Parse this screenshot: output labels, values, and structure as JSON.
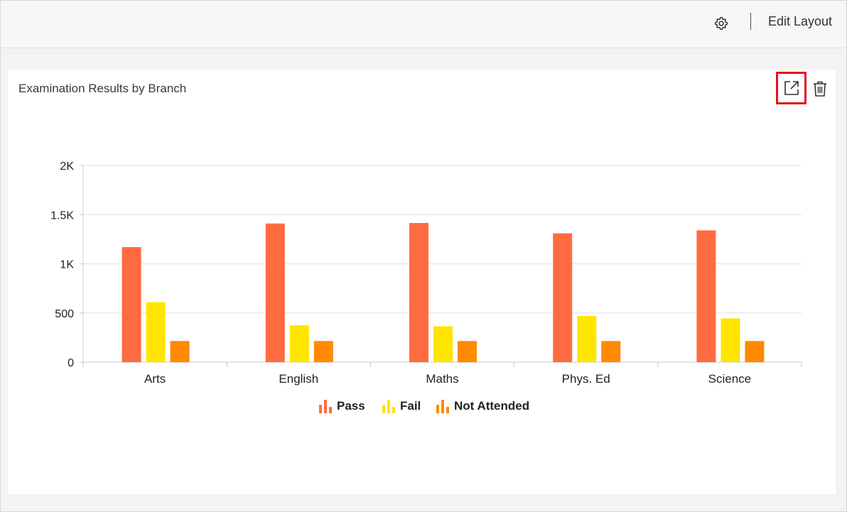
{
  "toolbar": {
    "edit_layout_label": "Edit Layout",
    "settings_icon": "gear-icon"
  },
  "widget": {
    "title": "Examination Results by Branch",
    "popout_icon": "external-link-icon",
    "delete_icon": "trash-icon",
    "highlight_color": "#e0141e"
  },
  "chart_data": {
    "type": "bar",
    "title": "Examination Results by Branch",
    "xlabel": "",
    "ylabel": "",
    "categories": [
      "Arts",
      "English",
      "Maths",
      "Phys. Ed",
      "Science"
    ],
    "series": [
      {
        "name": "Pass",
        "color": "#ff6b40",
        "values": [
          1170,
          1410,
          1415,
          1310,
          1340
        ]
      },
      {
        "name": "Fail",
        "color": "#ffe500",
        "values": [
          610,
          375,
          365,
          470,
          445
        ]
      },
      {
        "name": "Not Attended",
        "color": "#ff8a00",
        "values": [
          215,
          215,
          215,
          215,
          215
        ]
      }
    ],
    "ylim": [
      0,
      2000
    ],
    "yticks": [
      0,
      500,
      1000,
      1500,
      2000
    ],
    "ytick_labels": [
      "0",
      "500",
      "1K",
      "1.5K",
      "2K"
    ],
    "grid": true,
    "legend": "bottom-center"
  }
}
